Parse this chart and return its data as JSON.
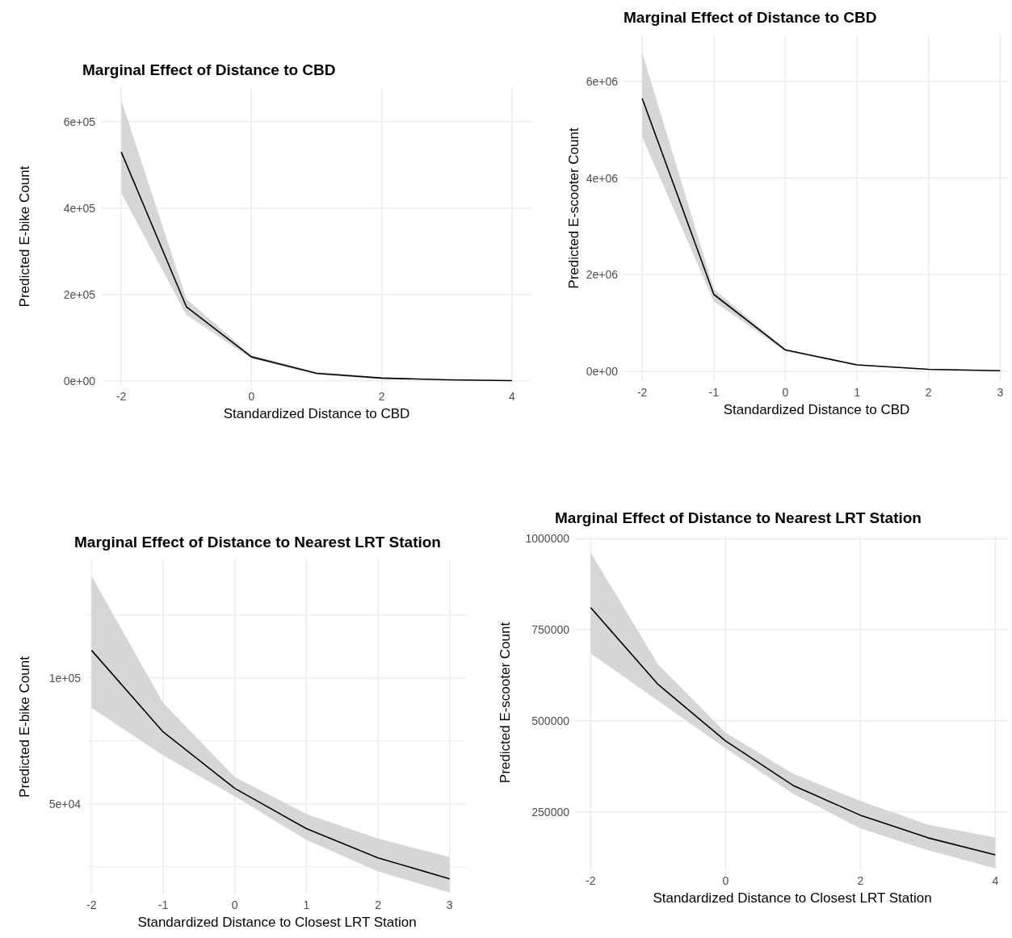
{
  "chart_data": [
    {
      "type": "line",
      "title": "Marginal Effect of Distance to CBD",
      "xlabel": "Standardized Distance to CBD",
      "ylabel": "Predicted E-bike Count",
      "x": [
        -2,
        -1,
        0,
        1,
        2,
        3,
        4
      ],
      "grid": true,
      "xlim": [
        -2.3,
        4.3
      ],
      "xticks": [
        -2,
        0,
        2,
        4
      ],
      "ylim": [
        -11000,
        680000
      ],
      "yticks": [
        {
          "value": 0,
          "label": "0e+00"
        },
        {
          "value": 200000,
          "label": "2e+05"
        },
        {
          "value": 400000,
          "label": "4e+05"
        },
        {
          "value": 600000,
          "label": "6e+05"
        }
      ],
      "series": [
        {
          "color": "#000000",
          "values": [
            530000,
            172000,
            56000,
            18000,
            7000,
            3000,
            1000
          ],
          "lower": [
            435000,
            153000,
            52000,
            15000,
            5000,
            1500,
            500
          ],
          "upper": [
            650000,
            190000,
            60000,
            21000,
            9000,
            3500,
            1500
          ]
        }
      ]
    },
    {
      "type": "line",
      "title": "Marginal Effect of Distance to CBD",
      "xlabel": "Standardized Distance to CBD",
      "ylabel": "Predicted E-scooter Count",
      "x": [
        -2,
        -1,
        0,
        1,
        2,
        3
      ],
      "grid": true,
      "xlim": [
        -2.25,
        3.12
      ],
      "xticks": [
        -2,
        -1,
        0,
        1,
        2,
        3
      ],
      "ylim": [
        -220000,
        6970000
      ],
      "yticks": [
        {
          "value": 0,
          "label": "0e+00"
        },
        {
          "value": 2000000,
          "label": "2e+06"
        },
        {
          "value": 4000000,
          "label": "4e+06"
        },
        {
          "value": 6000000,
          "label": "6e+06"
        }
      ],
      "series": [
        {
          "color": "#000000",
          "values": [
            5650000,
            1590000,
            440000,
            130000,
            40000,
            10000
          ],
          "lower": [
            4850000,
            1450000,
            410000,
            115000,
            32000,
            6000
          ],
          "upper": [
            6600000,
            1700000,
            460000,
            145000,
            48000,
            14000
          ]
        }
      ]
    },
    {
      "type": "line",
      "title": "Marginal Effect of Distance to Nearest LRT Station",
      "xlabel": "Standardized Distance to Closest LRT Station",
      "ylabel": "Predicted E-bike Count",
      "x": [
        -2,
        -1,
        0,
        1,
        2,
        3
      ],
      "grid": true,
      "xlim": [
        -2.06,
        3.24
      ],
      "xticks": [
        -2,
        -1,
        0,
        1,
        2,
        3
      ],
      "ylim": [
        14000,
        147000
      ],
      "yticks": [
        {
          "value": 25000,
          "label": null
        },
        {
          "value": 50000,
          "label": "5e+04"
        },
        {
          "value": 75000,
          "label": null
        },
        {
          "value": 100000,
          "label": "1e+05"
        },
        {
          "value": 125000,
          "label": null
        }
      ],
      "series": [
        {
          "color": "#000000",
          "values": [
            110900,
            78500,
            56100,
            40100,
            28500,
            20200
          ],
          "lower": [
            88100,
            69200,
            52900,
            35600,
            23100,
            14700
          ],
          "upper": [
            140400,
            90000,
            60600,
            45900,
            36200,
            28800
          ]
        }
      ]
    },
    {
      "type": "line",
      "title": "Marginal Effect of Distance to Nearest LRT Station",
      "xlabel": "Standardized Distance to Closest LRT Station",
      "ylabel": "Predicted E-scooter Count",
      "x": [
        -2,
        -1,
        0,
        1,
        2,
        3,
        4
      ],
      "grid": true,
      "xlim": [
        -2.22,
        4.2
      ],
      "xticks": [
        -2,
        0,
        2,
        4
      ],
      "ylim": [
        90000,
        1010000
      ],
      "yticks": [
        250000,
        500000,
        750000,
        1000000
      ],
      "series": [
        {
          "color": "#000000",
          "values": [
            811000,
            600000,
            445000,
            323000,
            241000,
            179000,
            132000
          ],
          "lower": [
            685000,
            555000,
            425000,
            300000,
            205000,
            145000,
            95000
          ],
          "upper": [
            962000,
            655000,
            468000,
            355000,
            280000,
            215000,
            180000
          ]
        }
      ]
    }
  ]
}
